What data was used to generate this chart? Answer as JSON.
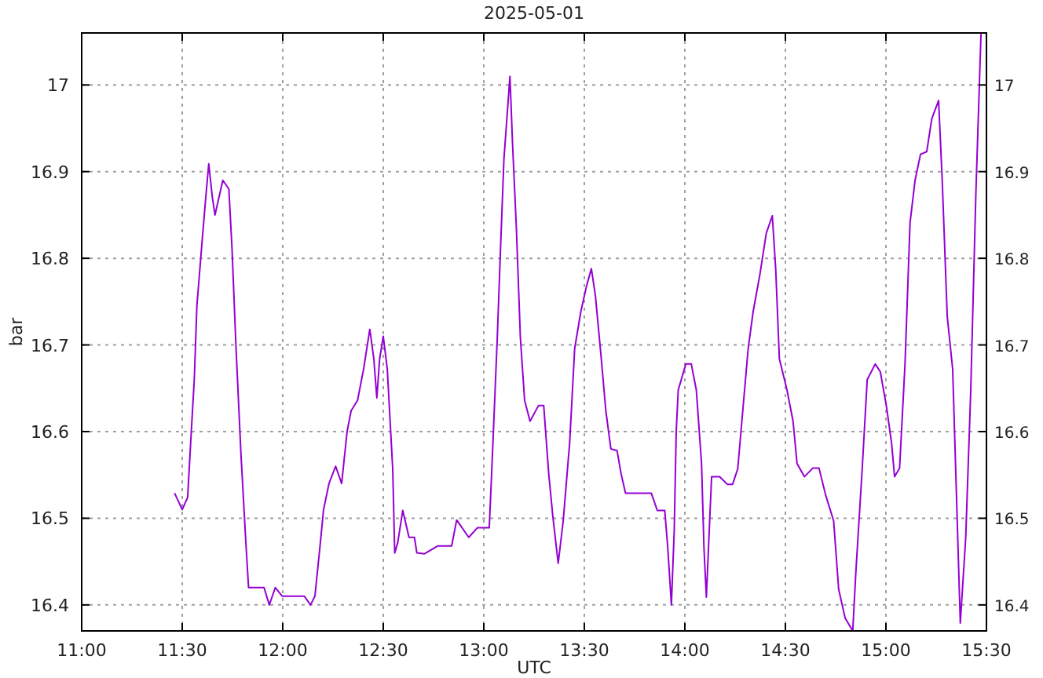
{
  "chart_data": {
    "type": "line",
    "title": "2025-05-01",
    "xlabel": "UTC",
    "ylabel": "bar",
    "xlim": [
      11,
      15.5
    ],
    "xticks": [
      {
        "value": 11,
        "label": "11:00"
      },
      {
        "value": 11.5,
        "label": "11:30"
      },
      {
        "value": 12,
        "label": "12:00"
      },
      {
        "value": 12.5,
        "label": "12:30"
      },
      {
        "value": 13,
        "label": "13:00"
      },
      {
        "value": 13.5,
        "label": "13:30"
      },
      {
        "value": 14,
        "label": "14:00"
      },
      {
        "value": 14.5,
        "label": "14:30"
      },
      {
        "value": 15,
        "label": "15:00"
      },
      {
        "value": 15.5,
        "label": "15:30"
      }
    ],
    "ylim": [
      16.37,
      17.06
    ],
    "yticks": [
      16.4,
      16.5,
      16.6,
      16.7,
      16.8,
      16.9,
      17
    ],
    "y2lim": [
      16.37,
      17.06
    ],
    "y2ticks": [
      16.4,
      16.5,
      16.6,
      16.7,
      16.8,
      16.9,
      17
    ],
    "grid": true,
    "line_style": "solid",
    "marker": "none",
    "series": [
      {
        "color": "#9400d3",
        "x": [
          11.462,
          11.5,
          11.527,
          11.542,
          11.56,
          11.573,
          11.598,
          11.617,
          11.632,
          11.65,
          11.663,
          11.702,
          11.732,
          11.748,
          11.767,
          11.792,
          11.817,
          11.83,
          11.907,
          11.933,
          11.963,
          11.998,
          12.108,
          12.138,
          12.16,
          12.185,
          12.203,
          12.23,
          12.263,
          12.293,
          12.32,
          12.34,
          12.372,
          12.402,
          12.433,
          12.453,
          12.468,
          12.482,
          12.5,
          12.52,
          12.547,
          12.557,
          12.572,
          12.597,
          12.628,
          12.655,
          12.667,
          12.705,
          12.77,
          12.84,
          12.865,
          12.925,
          12.968,
          13.027,
          13.04,
          13.067,
          13.083,
          13.1,
          13.13,
          13.143,
          13.162,
          13.182,
          13.203,
          13.23,
          13.272,
          13.298,
          13.323,
          13.343,
          13.37,
          13.395,
          13.427,
          13.452,
          13.483,
          13.512,
          13.535,
          13.555,
          13.582,
          13.607,
          13.632,
          13.663,
          13.683,
          13.705,
          13.833,
          13.863,
          13.9,
          13.915,
          13.933,
          13.947,
          13.957,
          13.967,
          14.005,
          14.032,
          14.057,
          14.083,
          14.095,
          14.107,
          14.122,
          14.133,
          14.173,
          14.212,
          14.237,
          14.263,
          14.288,
          14.315,
          14.34,
          14.373,
          14.405,
          14.435,
          14.452,
          14.47,
          14.508,
          14.538,
          14.558,
          14.595,
          14.637,
          14.667,
          14.7,
          14.74,
          14.765,
          14.797,
          14.835,
          14.85,
          14.882,
          14.907,
          14.947,
          14.972,
          15.002,
          15.028,
          15.043,
          15.068,
          15.095,
          15.12,
          15.145,
          15.172,
          15.203,
          15.228,
          15.262,
          15.28,
          15.305,
          15.332,
          15.35,
          15.37,
          15.397,
          15.422,
          15.447,
          15.473
        ],
        "values": [
          16.529,
          16.51,
          16.524,
          16.587,
          16.66,
          16.745,
          16.817,
          16.87,
          16.909,
          16.87,
          16.85,
          16.89,
          16.88,
          16.81,
          16.7,
          16.575,
          16.47,
          16.42,
          16.42,
          16.4,
          16.42,
          16.41,
          16.41,
          16.4,
          16.41,
          16.467,
          16.51,
          16.54,
          16.56,
          16.54,
          16.6,
          16.624,
          16.636,
          16.672,
          16.718,
          16.684,
          16.639,
          16.684,
          16.71,
          16.672,
          16.557,
          16.46,
          16.472,
          16.509,
          16.478,
          16.478,
          16.46,
          16.459,
          16.468,
          16.468,
          16.498,
          16.478,
          16.489,
          16.489,
          16.557,
          16.708,
          16.81,
          16.914,
          17.01,
          16.932,
          16.835,
          16.708,
          16.636,
          16.612,
          16.63,
          16.63,
          16.551,
          16.503,
          16.448,
          16.497,
          16.587,
          16.696,
          16.739,
          16.769,
          16.788,
          16.757,
          16.69,
          16.624,
          16.58,
          16.578,
          16.551,
          16.529,
          16.529,
          16.509,
          16.509,
          16.466,
          16.4,
          16.485,
          16.6,
          16.648,
          16.678,
          16.678,
          16.648,
          16.563,
          16.466,
          16.409,
          16.49,
          16.548,
          16.548,
          16.539,
          16.539,
          16.557,
          16.624,
          16.696,
          16.739,
          16.781,
          16.829,
          16.849,
          16.787,
          16.684,
          16.648,
          16.612,
          16.563,
          16.548,
          16.558,
          16.558,
          16.527,
          16.497,
          16.418,
          16.385,
          16.37,
          16.436,
          16.557,
          16.66,
          16.678,
          16.669,
          16.63,
          16.587,
          16.548,
          16.558,
          16.678,
          16.841,
          16.89,
          16.92,
          16.923,
          16.961,
          16.982,
          16.89,
          16.733,
          16.672,
          16.533,
          16.379,
          16.478,
          16.648,
          16.872,
          17.06
        ]
      }
    ]
  }
}
